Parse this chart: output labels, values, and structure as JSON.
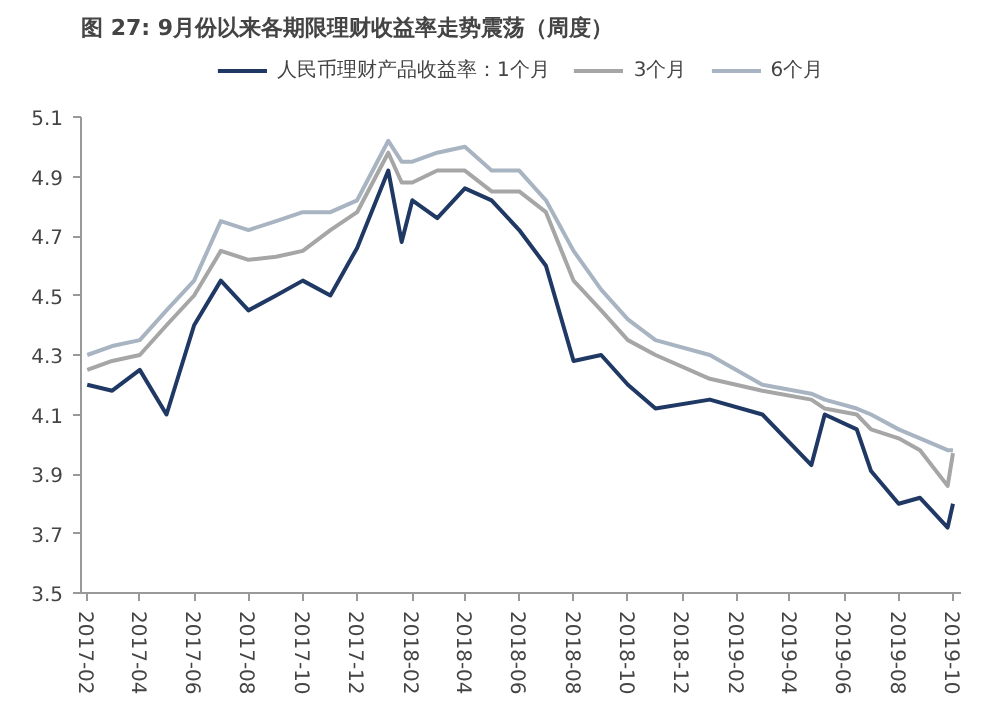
{
  "chart_data": {
    "type": "line",
    "title": "图 27: 9月份以来各期限理财收益率走势震荡（周度）",
    "x": [
      "2017-02",
      "2017-03",
      "2017-04",
      "2017-05",
      "2017-06",
      "2017-07",
      "2017-08",
      "2017-09",
      "2017-10",
      "2017-11",
      "2017-12",
      "2018-01-05",
      "2018-01-20",
      "2018-02",
      "2018-03",
      "2018-04",
      "2018-05",
      "2018-06",
      "2018-07",
      "2018-08",
      "2018-09",
      "2018-10",
      "2018-11",
      "2019-01",
      "2019-03",
      "2019-04-25",
      "2019-05-10",
      "2019-06-15",
      "2019-07",
      "2019-08",
      "2019-08-25",
      "2019-09-25",
      "2019-10"
    ],
    "series": [
      {
        "name": "人民币理财产品收益率：1个月",
        "color": "#1f3864",
        "values": [
          4.2,
          4.18,
          4.25,
          4.1,
          4.4,
          4.55,
          4.45,
          4.5,
          4.55,
          4.5,
          4.66,
          4.92,
          4.68,
          4.82,
          4.76,
          4.86,
          4.82,
          4.72,
          4.6,
          4.28,
          4.3,
          4.2,
          4.12,
          4.15,
          4.1,
          3.93,
          4.1,
          4.05,
          3.91,
          3.8,
          3.82,
          3.72,
          3.8
        ]
      },
      {
        "name": "3个月",
        "color": "#a6a6a6",
        "values": [
          4.25,
          4.28,
          4.3,
          4.4,
          4.5,
          4.65,
          4.62,
          4.63,
          4.65,
          4.72,
          4.78,
          4.98,
          4.88,
          4.88,
          4.92,
          4.92,
          4.85,
          4.85,
          4.78,
          4.55,
          4.45,
          4.35,
          4.3,
          4.22,
          4.18,
          4.15,
          4.12,
          4.1,
          4.05,
          4.02,
          3.98,
          3.86,
          3.97
        ]
      },
      {
        "name": "6个月",
        "color": "#a9b4c2",
        "values": [
          4.3,
          4.33,
          4.35,
          4.45,
          4.55,
          4.75,
          4.72,
          4.75,
          4.78,
          4.78,
          4.82,
          5.02,
          4.95,
          4.95,
          4.98,
          5.0,
          4.92,
          4.92,
          4.82,
          4.65,
          4.52,
          4.42,
          4.35,
          4.3,
          4.2,
          4.17,
          4.15,
          4.12,
          4.1,
          4.05,
          4.02,
          3.98,
          3.98
        ]
      }
    ],
    "xlim": [
      "2017-01-25",
      "2019-10-10"
    ],
    "xticks": [
      "2017-02",
      "2017-04",
      "2017-06",
      "2017-08",
      "2017-10",
      "2017-12",
      "2018-02",
      "2018-04",
      "2018-06",
      "2018-08",
      "2018-10",
      "2018-12",
      "2019-02",
      "2019-04",
      "2019-06",
      "2019-08",
      "2019-10"
    ],
    "ylim": [
      3.5,
      5.1
    ],
    "yticks": [
      3.5,
      3.7,
      3.9,
      4.1,
      4.3,
      4.5,
      4.7,
      4.9,
      5.1
    ],
    "grid": false,
    "legend": "top",
    "line_style": "solid"
  }
}
